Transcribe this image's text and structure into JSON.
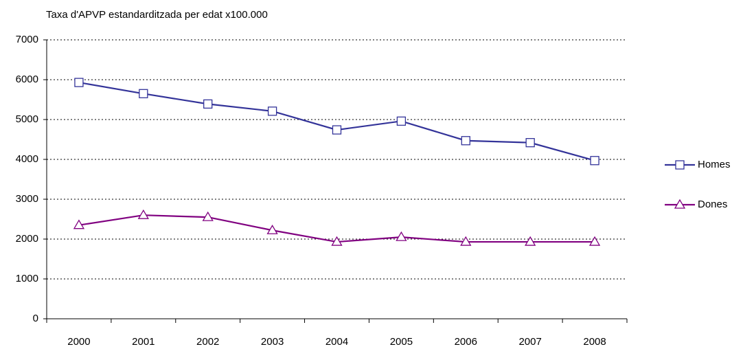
{
  "chart_data": {
    "type": "line",
    "title": "Taxa d'APVP estandarditzada per edat x100.000",
    "categories": [
      "2000",
      "2001",
      "2002",
      "2003",
      "2004",
      "2005",
      "2006",
      "2007",
      "2008"
    ],
    "series": [
      {
        "name": "Homes",
        "color": "#333399",
        "marker": "square",
        "values": [
          5930,
          5650,
          5390,
          5210,
          4740,
          4960,
          4470,
          4420,
          3970
        ]
      },
      {
        "name": "Dones",
        "color": "#800080",
        "marker": "triangle",
        "values": [
          2350,
          2600,
          2550,
          2220,
          1930,
          2050,
          1930,
          1930,
          1930
        ]
      }
    ],
    "ylim": [
      0,
      7000
    ],
    "yticks": [
      0,
      1000,
      2000,
      3000,
      4000,
      5000,
      6000,
      7000
    ],
    "grid": true,
    "legend": "right"
  }
}
